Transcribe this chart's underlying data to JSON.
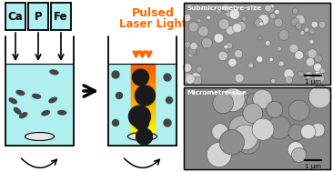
{
  "bg_color": "#ffffff",
  "cyan_color": "#b0f0f0",
  "black": "#000000",
  "orange": "#ff6600",
  "yellow": "#ffee00",
  "dark_particle": "#2a2a2a",
  "mid_particle": "#555555",
  "ca_label": "Ca",
  "p_label": "P",
  "fe_label": "Fe",
  "laser_text1": "Pulsed",
  "laser_text2": "Laser Light",
  "sub_label": "Submicrometre-size",
  "micro_label": "Micrometre-size",
  "scale_label": "1 μm",
  "sem_bg_top": "#aaaaaa",
  "sem_bg_bot": "#999999"
}
